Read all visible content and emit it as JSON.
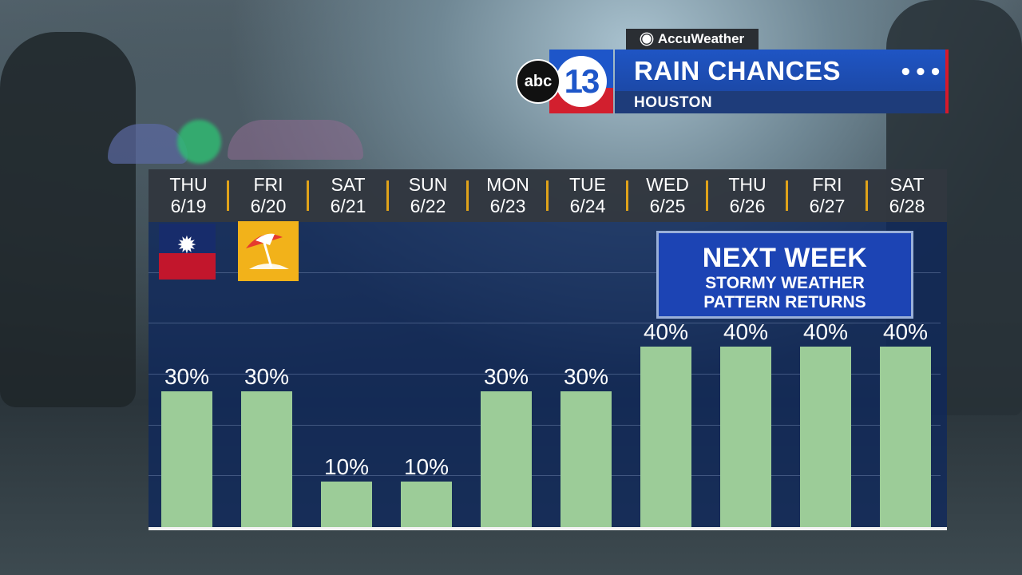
{
  "header": {
    "brand_tag": "AccuWeather",
    "station_abc": "abc",
    "station_number": "13",
    "title": "RAIN CHANCES",
    "subtitle": "HOUSTON",
    "menu_dots": "•••"
  },
  "callout": {
    "heading": "NEXT WEEK",
    "line1": "STORMY WEATHER",
    "line2": "PATTERN RETURNS"
  },
  "icons": [
    {
      "day": "THU 6/19",
      "name": "juneteenth-flag-icon"
    },
    {
      "day": "FRI 6/20",
      "name": "beach-umbrella-icon"
    }
  ],
  "colors": {
    "bar": "#9ccc98",
    "brand_blue": "#1f55c4",
    "brand_red": "#d21f2e",
    "separator": "#e0a31a"
  },
  "chart_data": {
    "type": "bar",
    "title": "RAIN CHANCES",
    "days": [
      "THU",
      "FRI",
      "SAT",
      "SUN",
      "MON",
      "TUE",
      "WED",
      "THU",
      "FRI",
      "SAT"
    ],
    "dates": [
      "6/19",
      "6/20",
      "6/21",
      "6/22",
      "6/23",
      "6/24",
      "6/25",
      "6/26",
      "6/27",
      "6/28"
    ],
    "values": [
      30,
      30,
      10,
      10,
      30,
      30,
      40,
      40,
      40,
      40
    ],
    "value_labels": [
      "30%",
      "30%",
      "10%",
      "10%",
      "30%",
      "30%",
      "40%",
      "40%",
      "40%",
      "40%"
    ],
    "ylim": [
      0,
      100
    ],
    "grid": true
  }
}
